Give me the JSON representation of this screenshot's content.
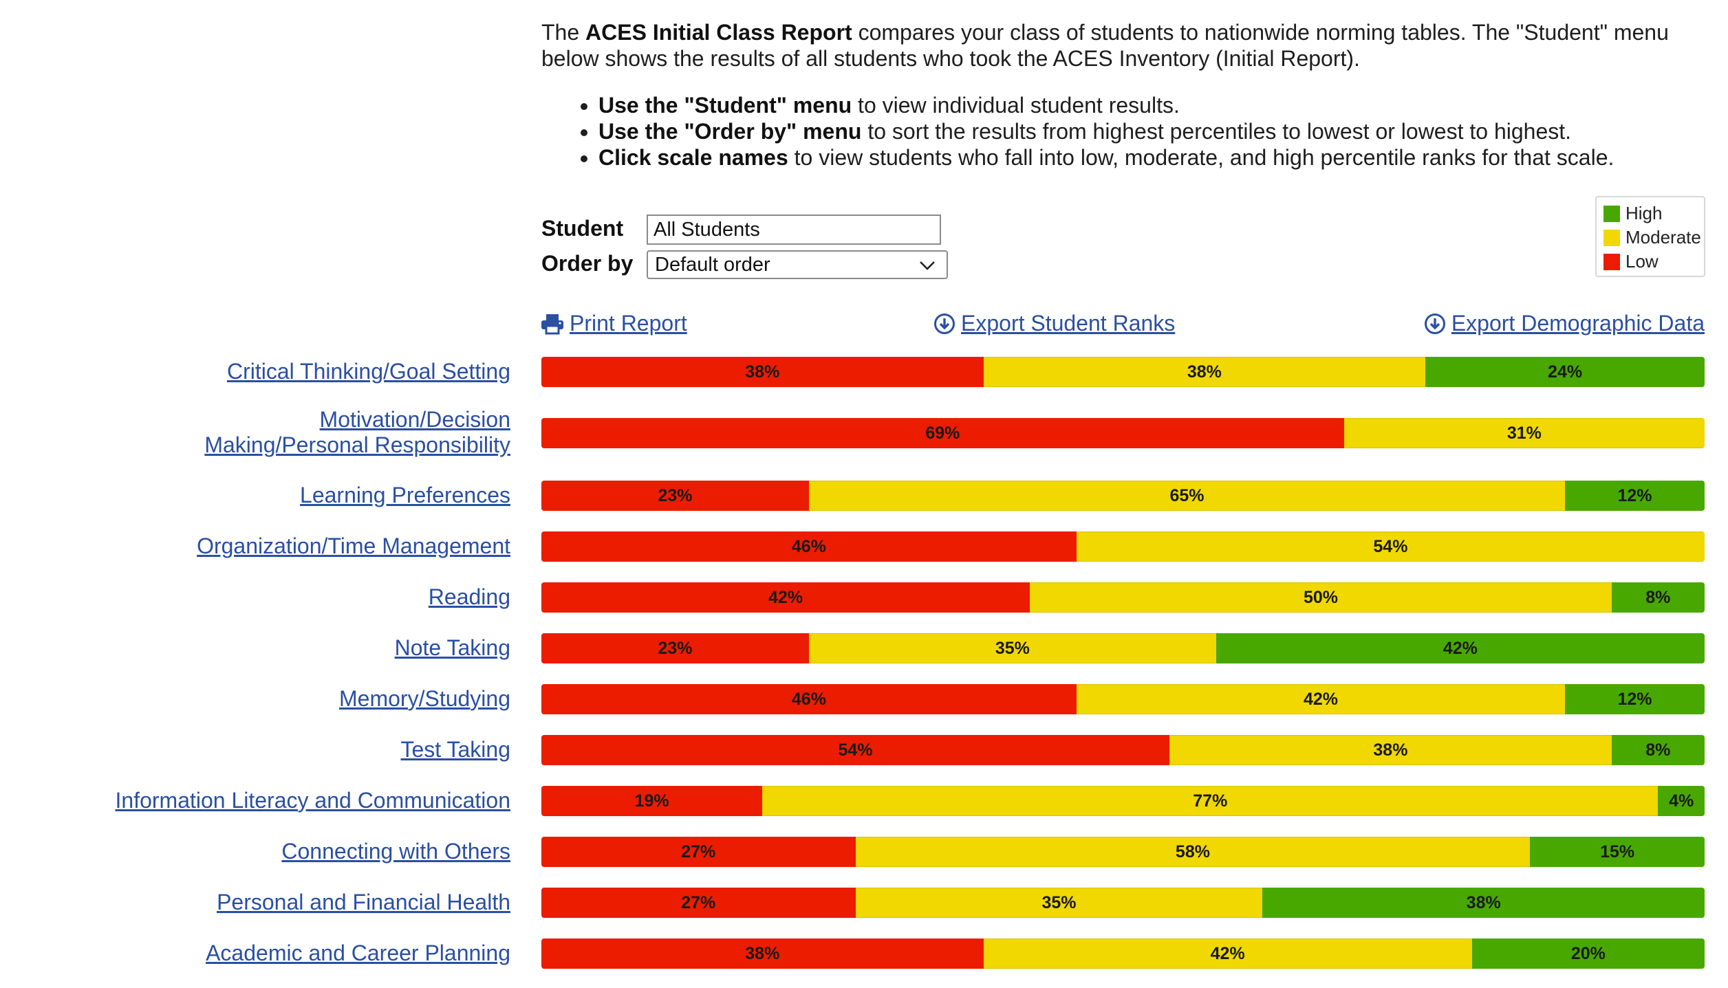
{
  "intro": {
    "pre": "The ",
    "report_name": "ACES Initial Class Report",
    "text": " compares your class of students to nationwide norming tables. The \"Student\" menu below shows the results of all students who took the ACES Inventory (Initial Report).",
    "bullets": [
      {
        "bold": "Use the \"Student\" menu",
        "rest": " to view individual student results."
      },
      {
        "bold": "Use the \"Order by\" menu",
        "rest": " to sort the results from highest percentiles to lowest or lowest to highest."
      },
      {
        "bold": "Click scale names",
        "rest": " to view students who fall into low, moderate, and high percentile ranks for that scale."
      }
    ]
  },
  "controls": {
    "student_label": "Student",
    "student_value": "All Students",
    "order_label": "Order by",
    "order_value": "Default order"
  },
  "legend": {
    "high": "High",
    "moderate": "Moderate",
    "low": "Low",
    "colors": {
      "high": "#48a800",
      "moderate": "#f0d800",
      "low": "#ec1c00"
    }
  },
  "actions": {
    "print": "Print Report",
    "export_ranks": "Export Student Ranks",
    "export_demographic": "Export Demographic Data"
  },
  "chart_data": {
    "type": "bar",
    "stacked": true,
    "orientation": "horizontal",
    "categories": [
      "Critical Thinking/Goal Setting",
      "Motivation/Decision Making/Personal Responsibility",
      "Learning Preferences",
      "Organization/Time Management",
      "Reading",
      "Note Taking",
      "Memory/Studying",
      "Test Taking",
      "Information Literacy and Communication",
      "Connecting with Others",
      "Personal and Financial Health",
      "Academic and Career Planning"
    ],
    "series": [
      {
        "name": "Low",
        "values": [
          38,
          69,
          23,
          46,
          42,
          23,
          46,
          54,
          19,
          27,
          27,
          38
        ]
      },
      {
        "name": "Moderate",
        "values": [
          38,
          31,
          65,
          54,
          50,
          35,
          42,
          38,
          77,
          58,
          35,
          42
        ]
      },
      {
        "name": "High",
        "values": [
          24,
          0,
          12,
          0,
          8,
          42,
          12,
          8,
          4,
          15,
          38,
          20
        ]
      }
    ],
    "unit": "%"
  }
}
